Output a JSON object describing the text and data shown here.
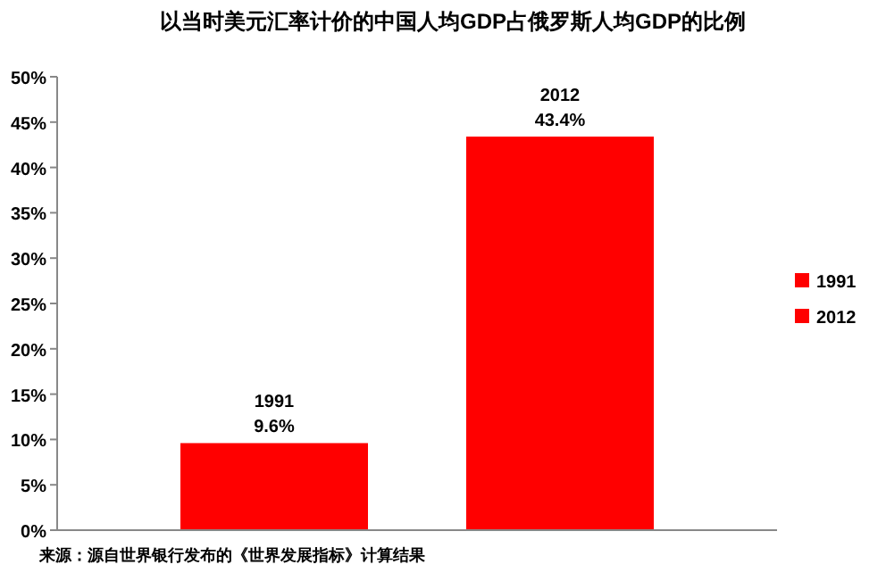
{
  "chart_data": {
    "type": "bar",
    "title": "以当时美元汇率计价的中国人均GDP占俄罗斯人均GDP的比例",
    "categories": [
      null
    ],
    "series": [
      {
        "name": "1991",
        "color": "#ff0000",
        "values": [
          9.6
        ],
        "value_labels": [
          "9.6%"
        ]
      },
      {
        "name": "2012",
        "color": "#ff0000",
        "values": [
          43.4
        ],
        "value_labels": [
          "43.4%"
        ]
      }
    ],
    "ylim": [
      0,
      50
    ],
    "yticks": [
      {
        "value": 0,
        "label": "0%"
      },
      {
        "value": 5,
        "label": "5%"
      },
      {
        "value": 10,
        "label": "10%"
      },
      {
        "value": 15,
        "label": "15%"
      },
      {
        "value": 20,
        "label": "20%"
      },
      {
        "value": 25,
        "label": "25%"
      },
      {
        "value": 30,
        "label": "30%"
      },
      {
        "value": 35,
        "label": "35%"
      },
      {
        "value": 40,
        "label": "40%"
      },
      {
        "value": 45,
        "label": "45%"
      },
      {
        "value": 50,
        "label": "50%"
      }
    ],
    "grid": false,
    "legend": "right",
    "annotations": [
      "来源：源自世界银行发布的《世界发展指标》计算结果"
    ]
  }
}
